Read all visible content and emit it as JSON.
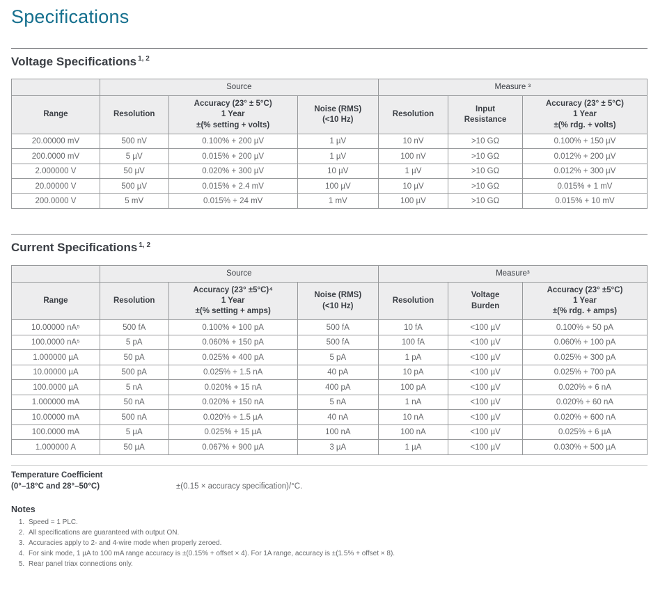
{
  "colors": {
    "accent_teal": "#16708e",
    "heading_gray": "#3b3f45",
    "body_text_gray": "#66686b",
    "table_header_bg": "#ededee",
    "table_border": "#97999b"
  },
  "page": {
    "title": "Specifications"
  },
  "tables": [
    {
      "id": "voltage",
      "title": "Voltage Specifications",
      "title_sup": "1, 2",
      "col_groups": [
        {
          "label": "",
          "span": 1
        },
        {
          "label": "Source",
          "span": 3
        },
        {
          "label": "Measure ³",
          "span": 3
        }
      ],
      "columns": [
        {
          "lines": [
            "Range"
          ]
        },
        {
          "lines": [
            "Resolution"
          ]
        },
        {
          "lines": [
            "Accuracy (23° ± 5°C)",
            "1 Year",
            "±(% setting + volts)"
          ]
        },
        {
          "lines": [
            "Noise (RMS)",
            "(<10 Hz)"
          ]
        },
        {
          "lines": [
            "Resolution"
          ]
        },
        {
          "lines": [
            "Input",
            "Resistance"
          ]
        },
        {
          "lines": [
            "Accuracy (23° ± 5°C)",
            "1 Year",
            "±(% rdg. + volts)"
          ]
        }
      ],
      "rows": [
        [
          "20.00000 mV",
          "500 nV",
          "0.100% + 200 µV",
          "1 µV",
          "10 nV",
          ">10 GΩ",
          "0.100% + 150 µV"
        ],
        [
          "200.0000 mV",
          "5 µV",
          "0.015% + 200 µV",
          "1 µV",
          "100 nV",
          ">10 GΩ",
          "0.012% + 200 µV"
        ],
        [
          "2.000000 V",
          "50 µV",
          "0.020% + 300 µV",
          "10 µV",
          "1 µV",
          ">10 GΩ",
          "0.012% + 300 µV"
        ],
        [
          "20.00000 V",
          "500 µV",
          "0.015% + 2.4 mV",
          "100 µV",
          "10 µV",
          ">10 GΩ",
          "0.015% + 1 mV"
        ],
        [
          "200.0000 V",
          "5 mV",
          "0.015% + 24 mV",
          "1 mV",
          "100 µV",
          ">10 GΩ",
          "0.015% + 10 mV"
        ]
      ]
    },
    {
      "id": "current",
      "title": "Current Specifications",
      "title_sup": "1, 2",
      "col_groups": [
        {
          "label": "",
          "span": 1
        },
        {
          "label": "Source",
          "span": 3
        },
        {
          "label": "Measure³",
          "span": 3
        }
      ],
      "columns": [
        {
          "lines": [
            "Range"
          ]
        },
        {
          "lines": [
            "Resolution"
          ]
        },
        {
          "lines": [
            "Accuracy (23° ±5°C)⁴",
            "1 Year",
            "±(% setting + amps)"
          ]
        },
        {
          "lines": [
            "Noise (RMS)",
            "(<10 Hz)"
          ]
        },
        {
          "lines": [
            "Resolution"
          ]
        },
        {
          "lines": [
            "Voltage",
            "Burden"
          ]
        },
        {
          "lines": [
            "Accuracy (23° ±5°C)",
            "1 Year",
            "±(% rdg. + amps)"
          ]
        }
      ],
      "rows": [
        [
          "10.00000 nA⁵",
          "500 fA",
          "0.100% + 100 pA",
          "500 fA",
          "10 fA",
          "<100 µV",
          "0.100% + 50 pA"
        ],
        [
          "100.0000 nA⁵",
          "5 pA",
          "0.060% + 150 pA",
          "500 fA",
          "100 fA",
          "<100 µV",
          "0.060% + 100 pA"
        ],
        [
          "1.000000 µA",
          "50 pA",
          "0.025% + 400 pA",
          "5 pA",
          "1 pA",
          "<100 µV",
          "0.025% + 300 pA"
        ],
        [
          "10.00000 µA",
          "500 pA",
          "0.025% + 1.5 nA",
          "40 pA",
          "10 pA",
          "<100 µV",
          "0.025% + 700 pA"
        ],
        [
          "100.0000 µA",
          "5 nA",
          "0.020% + 15 nA",
          "400 pA",
          "100 pA",
          "<100 µV",
          "0.020% + 6 nA"
        ],
        [
          "1.000000 mA",
          "50 nA",
          "0.020% + 150 nA",
          "5 nA",
          "1 nA",
          "<100 µV",
          "0.020% + 60 nA"
        ],
        [
          "10.00000 mA",
          "500 nA",
          "0.020% + 1.5 µA",
          "40 nA",
          "10 nA",
          "<100 µV",
          "0.020% + 600 nA"
        ],
        [
          "100.0000 mA",
          "5 µA",
          "0.025% + 15 µA",
          "100 nA",
          "100 nA",
          "<100 µV",
          "0.025% + 6 µA"
        ],
        [
          "1.000000 A",
          "50 µA",
          "0.067% + 900 µA",
          "3 µA",
          "1 µA",
          "<100 µV",
          "0.030% + 500 µA"
        ]
      ]
    }
  ],
  "temperature": {
    "label_line1": "Temperature Coefficient",
    "label_line2": "(0°–18°C and 28°–50°C)",
    "value": "±(0.15 × accuracy specification)/°C."
  },
  "notes": {
    "heading": "Notes",
    "items": [
      "Speed = 1 PLC.",
      "All specifications are guaranteed with output ON.",
      "Accuracies apply to 2- and 4-wire mode when properly zeroed.",
      "For sink mode, 1 µA to 100 mA range accuracy is ±(0.15% + offset × 4). For 1A range, accuracy is ±(1.5% + offset × 8).",
      "Rear panel triax connections only."
    ]
  }
}
